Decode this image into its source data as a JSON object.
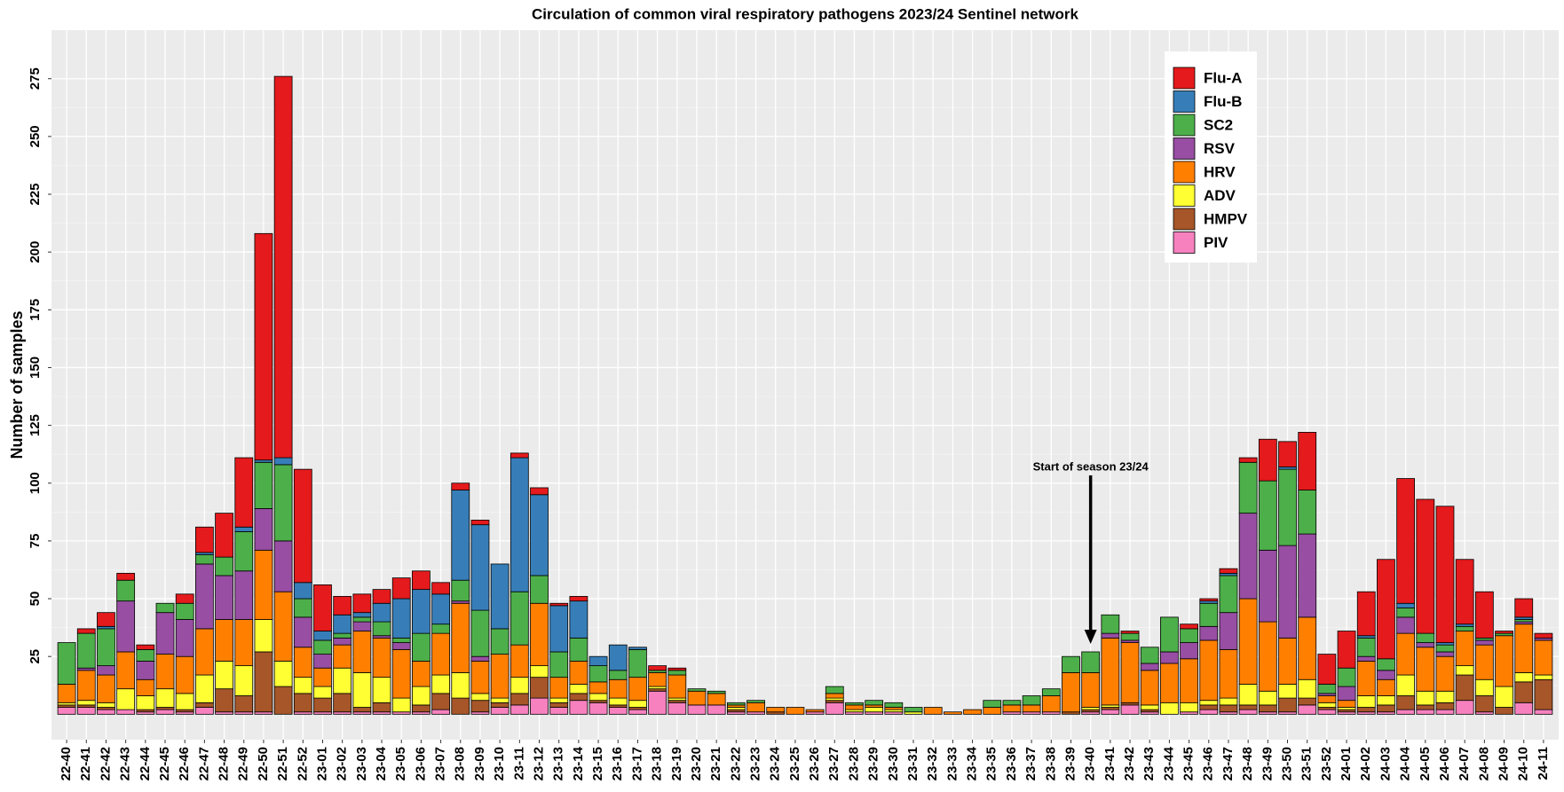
{
  "chart_data": {
    "type": "bar",
    "stacked": true,
    "title": "Circulation of common viral respiratory  pathogens 2023/24 Sentinel network",
    "y_label": "Number of samples",
    "annotation": "Start of season 23/24",
    "legend": "top-right",
    "grid": true,
    "ylim": [
      -11,
      296
    ],
    "yticks": [
      25,
      50,
      75,
      100,
      125,
      150,
      175,
      200,
      225,
      250,
      275
    ],
    "categories": [
      "22-40",
      "22-41",
      "22-42",
      "22-43",
      "22-44",
      "22-45",
      "22-46",
      "22-47",
      "22-48",
      "22-49",
      "22-50",
      "22-51",
      "22-52",
      "23-01",
      "23-02",
      "23-03",
      "23-04",
      "23-05",
      "23-06",
      "23-07",
      "23-08",
      "23-09",
      "23-10",
      "23-11",
      "23-12",
      "23-13",
      "23-14",
      "23-15",
      "23-16",
      "23-17",
      "23-18",
      "23-19",
      "23-20",
      "23-21",
      "23-22",
      "23-23",
      "23-24",
      "23-25",
      "23-26",
      "23-27",
      "23-28",
      "23-29",
      "23-30",
      "23-31",
      "23-32",
      "23-33",
      "23-34",
      "23-35",
      "23-36",
      "23-37",
      "23-38",
      "23-39",
      "23-40",
      "23-41",
      "23-42",
      "23-43",
      "23-44",
      "23-45",
      "23-46",
      "23-47",
      "23-48",
      "23-49",
      "23-50",
      "23-51",
      "23-52",
      "24-01",
      "24-02",
      "24-03",
      "24-04",
      "24-05",
      "24-06",
      "24-07",
      "24-08",
      "24-09",
      "24-10",
      "24-11"
    ],
    "series": [
      {
        "name": "Flu-A",
        "color": "#e41a1c",
        "values": [
          0,
          2,
          6,
          3,
          2,
          0,
          4,
          11,
          19,
          30,
          98,
          165,
          49,
          20,
          8,
          8,
          6,
          9,
          8,
          5,
          3,
          2,
          0,
          2,
          3,
          1,
          2,
          0,
          0,
          0,
          2,
          1,
          0,
          0,
          0,
          0,
          0,
          0,
          0,
          0,
          0,
          0,
          0,
          0,
          0,
          0,
          0,
          0,
          0,
          0,
          0,
          0,
          0,
          0,
          1,
          0,
          0,
          2,
          1,
          2,
          2,
          18,
          11,
          25,
          13,
          16,
          19,
          43,
          54,
          58,
          59,
          28,
          20,
          1,
          8,
          2
        ]
      },
      {
        "name": "Flu-B",
        "color": "#377eb8",
        "values": [
          0,
          0,
          1,
          0,
          0,
          0,
          0,
          1,
          0,
          2,
          1,
          3,
          7,
          4,
          8,
          2,
          8,
          17,
          19,
          13,
          39,
          37,
          28,
          58,
          35,
          20,
          16,
          4,
          11,
          1,
          0,
          0,
          0,
          0,
          0,
          0,
          0,
          0,
          0,
          0,
          0,
          0,
          0,
          0,
          0,
          0,
          0,
          0,
          0,
          0,
          0,
          0,
          0,
          0,
          0,
          0,
          0,
          0,
          1,
          1,
          0,
          0,
          1,
          0,
          0,
          0,
          1,
          0,
          2,
          0,
          1,
          1,
          0,
          0,
          1,
          0
        ]
      },
      {
        "name": "SC2",
        "color": "#4daf4a",
        "values": [
          18,
          15,
          16,
          9,
          5,
          4,
          7,
          4,
          8,
          17,
          20,
          33,
          8,
          6,
          2,
          2,
          6,
          2,
          12,
          4,
          9,
          20,
          11,
          23,
          12,
          11,
          10,
          7,
          4,
          12,
          1,
          2,
          1,
          1,
          1,
          1,
          0,
          0,
          0,
          3,
          1,
          2,
          2,
          2,
          0,
          0,
          0,
          3,
          2,
          4,
          3,
          7,
          9,
          8,
          3,
          7,
          15,
          6,
          10,
          16,
          22,
          30,
          33,
          19,
          4,
          8,
          8,
          5,
          4,
          4,
          3,
          2,
          1,
          1,
          1,
          0
        ]
      },
      {
        "name": "RSV",
        "color": "#984ea3",
        "values": [
          0,
          1,
          4,
          22,
          8,
          18,
          16,
          28,
          19,
          21,
          18,
          22,
          13,
          6,
          3,
          4,
          1,
          3,
          0,
          0,
          1,
          2,
          0,
          0,
          0,
          0,
          0,
          0,
          0,
          0,
          0,
          0,
          0,
          0,
          0,
          0,
          0,
          0,
          0,
          0,
          0,
          0,
          0,
          0,
          0,
          0,
          0,
          0,
          0,
          0,
          0,
          0,
          0,
          2,
          1,
          3,
          5,
          7,
          6,
          16,
          37,
          31,
          40,
          36,
          1,
          6,
          2,
          4,
          7,
          2,
          2,
          0,
          2,
          0,
          1,
          1
        ]
      },
      {
        "name": "HRV",
        "color": "#ff7f00",
        "values": [
          8,
          13,
          12,
          16,
          7,
          15,
          16,
          20,
          18,
          20,
          30,
          30,
          13,
          8,
          10,
          18,
          17,
          21,
          11,
          18,
          30,
          14,
          19,
          14,
          27,
          9,
          10,
          5,
          8,
          10,
          6,
          10,
          6,
          5,
          1,
          4,
          2,
          3,
          1,
          2,
          2,
          1,
          1,
          0,
          3,
          1,
          2,
          3,
          3,
          3,
          7,
          17,
          15,
          29,
          26,
          15,
          17,
          19,
          26,
          21,
          37,
          30,
          20,
          27,
          3,
          3,
          15,
          7,
          18,
          19,
          15,
          15,
          15,
          22,
          21,
          15
        ]
      },
      {
        "name": "ADV",
        "color": "#ffff33",
        "values": [
          1,
          2,
          2,
          9,
          6,
          8,
          7,
          12,
          12,
          13,
          14,
          11,
          7,
          5,
          11,
          15,
          11,
          6,
          8,
          8,
          11,
          3,
          2,
          7,
          5,
          2,
          4,
          3,
          3,
          3,
          1,
          1,
          0,
          0,
          1,
          0,
          0,
          0,
          0,
          1,
          1,
          2,
          1,
          1,
          0,
          0,
          0,
          0,
          0,
          0,
          0,
          0,
          1,
          1,
          0,
          2,
          5,
          4,
          2,
          3,
          9,
          6,
          6,
          8,
          2,
          1,
          5,
          4,
          9,
          6,
          5,
          4,
          7,
          9,
          4,
          2
        ]
      },
      {
        "name": "HMPV",
        "color": "#a65628",
        "values": [
          1,
          1,
          1,
          0,
          1,
          1,
          1,
          2,
          10,
          7,
          26,
          12,
          8,
          6,
          8,
          2,
          4,
          0,
          3,
          7,
          7,
          5,
          2,
          5,
          9,
          2,
          3,
          1,
          1,
          1,
          1,
          1,
          0,
          0,
          1,
          0,
          1,
          0,
          0,
          1,
          0,
          0,
          0,
          0,
          0,
          0,
          0,
          0,
          0,
          0,
          0,
          1,
          1,
          1,
          1,
          1,
          0,
          0,
          2,
          3,
          2,
          3,
          6,
          3,
          1,
          1,
          2,
          3,
          6,
          2,
          3,
          11,
          7,
          3,
          9,
          13
        ]
      },
      {
        "name": "PIV",
        "color": "#f781bf",
        "values": [
          3,
          3,
          2,
          2,
          1,
          2,
          1,
          3,
          1,
          1,
          1,
          0,
          1,
          1,
          1,
          1,
          1,
          1,
          1,
          2,
          0,
          1,
          3,
          4,
          7,
          3,
          6,
          5,
          3,
          2,
          10,
          5,
          4,
          4,
          1,
          1,
          0,
          0,
          1,
          5,
          1,
          1,
          1,
          0,
          0,
          0,
          0,
          0,
          1,
          1,
          1,
          0,
          1,
          2,
          4,
          1,
          0,
          1,
          2,
          1,
          2,
          1,
          1,
          4,
          2,
          1,
          1,
          1,
          2,
          2,
          2,
          6,
          1,
          0,
          5,
          2
        ]
      }
    ]
  }
}
